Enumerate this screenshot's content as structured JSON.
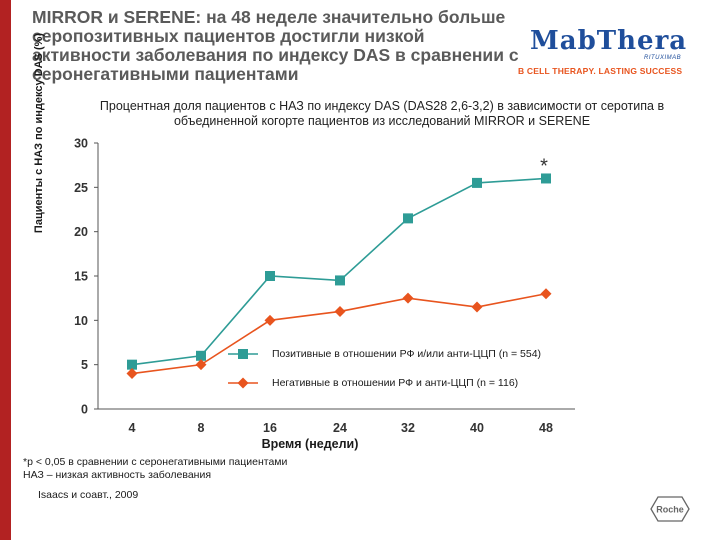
{
  "slide": {
    "title": "MIRROR и SERENE: на 48 неделе значительно больше серопозитивных пациентов достигли низкой активности заболевания по индексу DAS в сравнении с серонегативными пациентами"
  },
  "logo": {
    "brand": "MabThera",
    "sub": "RITUXIMAB",
    "tagline": "B CELL THERAPY. LASTING SUCCESS"
  },
  "colors": {
    "accent": "#e8541e",
    "bar": "#b22222",
    "positive": "#2e9c96",
    "negative": "#e8541e",
    "axis": "#555555"
  },
  "chart_data": {
    "type": "line",
    "title": "Процентная доля пациентов с НАЗ по индексу DAS (DAS28 2,6-3,2) в зависимости от серотипа в объединенной когорте пациентов из исследований MIRROR и SERENE",
    "xlabel": "Время (недели)",
    "ylabel": "Пациенты с НАЗ по индексу DAS (%)",
    "ylim": [
      0,
      30
    ],
    "yticks": [
      "0",
      "5",
      "10",
      "15",
      "20",
      "25",
      "30"
    ],
    "categories": [
      "4",
      "8",
      "16",
      "24",
      "32",
      "40",
      "48"
    ],
    "series": [
      {
        "name": "Позитивные в отношении РФ и/или анти-ЦЦП (n = 554)",
        "marker": "square",
        "values": [
          5,
          6,
          15,
          14.5,
          21.5,
          25.5,
          26
        ]
      },
      {
        "name": "Негативные в отношении РФ и анти-ЦЦП (n = 116)",
        "marker": "diamond",
        "values": [
          4,
          5,
          10,
          11,
          12.5,
          11.5,
          13
        ]
      }
    ],
    "annotation": "*"
  },
  "footnotes": {
    "line1": "*p < 0,05 в сравнении с серонегативными пациентами",
    "line2": "НАЗ – низкая активность заболевания",
    "source": "Isaacs и соавт., 2009"
  },
  "roche": "Roche"
}
